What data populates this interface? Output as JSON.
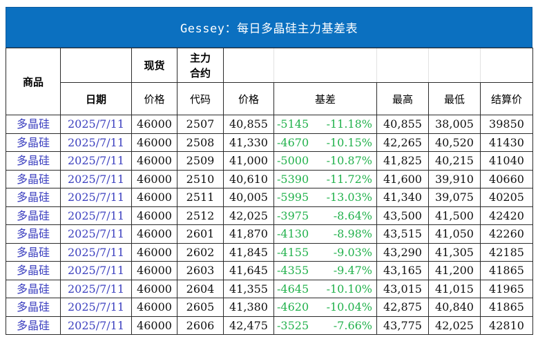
{
  "title": "Gessey：每日多晶硅主力基差表",
  "header_row1": {
    "product": "商品",
    "spot": "现货",
    "main_contract": "主力\n合约"
  },
  "header_row2": {
    "date": "日期",
    "spot_price": "价格",
    "code": "代码",
    "price": "价格",
    "basis": "基差",
    "high": "最高",
    "low": "最低",
    "settle": "结算价"
  },
  "rows": [
    {
      "product": "多晶硅",
      "date": "2025/7/11",
      "spot": "46000",
      "code": "2507",
      "price": "40,855",
      "basis": "-5145",
      "basis_pct": "-11.18%",
      "high": "40,855",
      "low": "38,005",
      "settle": "39850"
    },
    {
      "product": "多晶硅",
      "date": "2025/7/11",
      "spot": "46000",
      "code": "2508",
      "price": "41,330",
      "basis": "-4670",
      "basis_pct": "-10.15%",
      "high": "42,265",
      "low": "40,520",
      "settle": "41430"
    },
    {
      "product": "多晶硅",
      "date": "2025/7/11",
      "spot": "46000",
      "code": "2509",
      "price": "41,000",
      "basis": "-5000",
      "basis_pct": "-10.87%",
      "high": "41,825",
      "low": "40,215",
      "settle": "41040"
    },
    {
      "product": "多晶硅",
      "date": "2025/7/11",
      "spot": "46000",
      "code": "2510",
      "price": "40,610",
      "basis": "-5390",
      "basis_pct": "-11.72%",
      "high": "41,600",
      "low": "39,910",
      "settle": "40660"
    },
    {
      "product": "多晶硅",
      "date": "2025/7/11",
      "spot": "46000",
      "code": "2511",
      "price": "40,005",
      "basis": "-5995",
      "basis_pct": "-13.03%",
      "high": "41,340",
      "low": "39,075",
      "settle": "40205"
    },
    {
      "product": "多晶硅",
      "date": "2025/7/11",
      "spot": "46000",
      "code": "2512",
      "price": "42,025",
      "basis": "-3975",
      "basis_pct": "-8.64%",
      "high": "43,500",
      "low": "41,500",
      "settle": "42420"
    },
    {
      "product": "多晶硅",
      "date": "2025/7/11",
      "spot": "46000",
      "code": "2601",
      "price": "41,870",
      "basis": "-4130",
      "basis_pct": "-8.98%",
      "high": "43,515",
      "low": "41,050",
      "settle": "42260"
    },
    {
      "product": "多晶硅",
      "date": "2025/7/11",
      "spot": "46000",
      "code": "2602",
      "price": "41,845",
      "basis": "-4155",
      "basis_pct": "-9.03%",
      "high": "43,290",
      "low": "41,305",
      "settle": "42185"
    },
    {
      "product": "多晶硅",
      "date": "2025/7/11",
      "spot": "46000",
      "code": "2603",
      "price": "41,645",
      "basis": "-4355",
      "basis_pct": "-9.47%",
      "high": "43,165",
      "low": "41,200",
      "settle": "41865"
    },
    {
      "product": "多晶硅",
      "date": "2025/7/11",
      "spot": "46000",
      "code": "2604",
      "price": "41,355",
      "basis": "-4645",
      "basis_pct": "-10.10%",
      "high": "43,015",
      "low": "41,015",
      "settle": "41965"
    },
    {
      "product": "多晶硅",
      "date": "2025/7/11",
      "spot": "46000",
      "code": "2605",
      "price": "41,380",
      "basis": "-4620",
      "basis_pct": "-10.04%",
      "high": "42,875",
      "low": "40,840",
      "settle": "41865"
    },
    {
      "product": "多晶硅",
      "date": "2025/7/11",
      "spot": "46000",
      "code": "2606",
      "price": "42,475",
      "basis": "-3525",
      "basis_pct": "-7.66%",
      "high": "43,775",
      "low": "42,025",
      "settle": "42810"
    }
  ],
  "colors": {
    "title_bg": "#0b70c0",
    "title_text": "#ffffff",
    "product_text": "#3b3fbf",
    "basis_text": "#22b14c",
    "value_text": "#111111"
  }
}
